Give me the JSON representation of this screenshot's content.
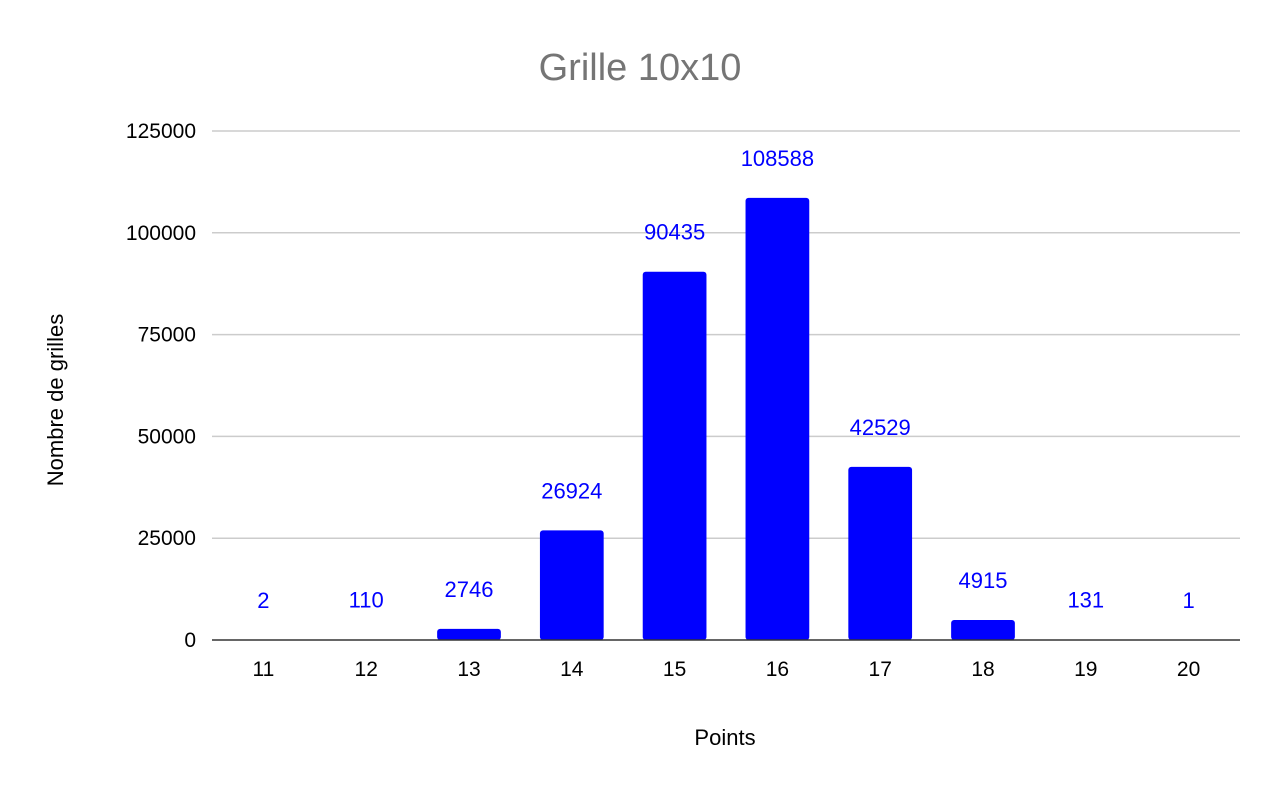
{
  "chart_data": {
    "type": "bar",
    "title": "Grille 10x10",
    "xlabel": "Points",
    "ylabel": "Nombre de grilles",
    "categories": [
      "11",
      "12",
      "13",
      "14",
      "15",
      "16",
      "17",
      "18",
      "19",
      "20"
    ],
    "values": [
      2,
      110,
      2746,
      26924,
      90435,
      108588,
      42529,
      4915,
      131,
      1
    ],
    "data_labels": [
      "2",
      "110",
      "2746",
      "26924",
      "90435",
      "108588",
      "42529",
      "4915",
      "131",
      "1"
    ],
    "y_ticks": [
      0,
      25000,
      50000,
      75000,
      100000,
      125000
    ],
    "y_tick_labels": [
      "0",
      "25000",
      "50000",
      "75000",
      "100000",
      "125000"
    ],
    "ylim": [
      0,
      125000
    ],
    "grid": true,
    "legend": "none",
    "colors": {
      "bar": "#0000ff",
      "data_label": "#0000ff",
      "title": "#757575"
    }
  }
}
